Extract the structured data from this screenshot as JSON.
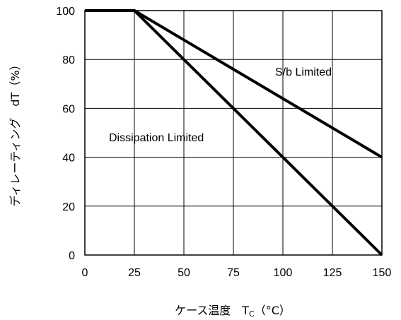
{
  "chart_data": {
    "type": "line",
    "xlabel_main": "ケース温度　T",
    "xlabel_sub": "C",
    "xlabel_unit": "（°C）",
    "ylabel": "ディレーティング　dT（%）",
    "xlim": [
      0,
      150
    ],
    "ylim": [
      0,
      100
    ],
    "x_ticks": [
      "0",
      "25",
      "50",
      "75",
      "100",
      "125",
      "150"
    ],
    "y_ticks": [
      "0",
      "20",
      "40",
      "60",
      "80",
      "100"
    ],
    "grid": true,
    "line_color": "#000000",
    "series": [
      {
        "name": "S/b Limited",
        "x": [
          0,
          25,
          150
        ],
        "y": [
          100,
          100,
          40
        ]
      },
      {
        "name": "Dissipation Limited",
        "x": [
          0,
          25,
          150
        ],
        "y": [
          100,
          100,
          0
        ]
      }
    ]
  }
}
